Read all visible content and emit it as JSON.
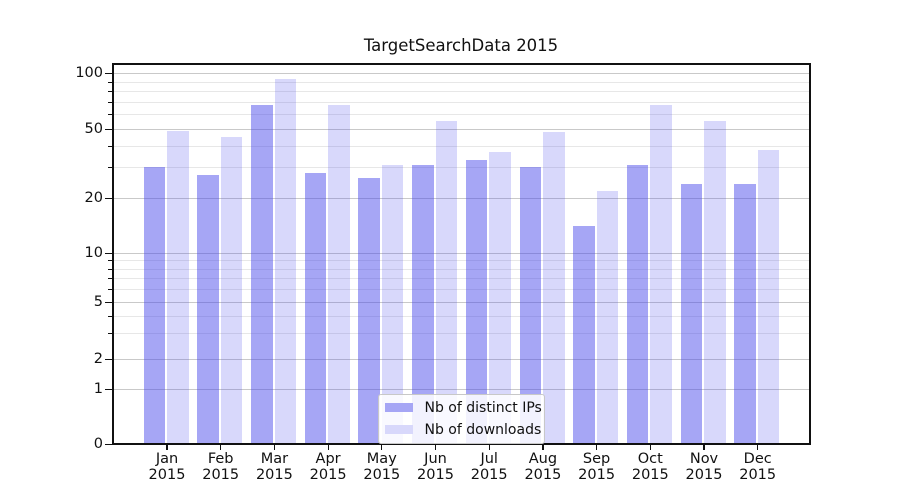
{
  "title": "TargetSearchData 2015",
  "legend": {
    "items": [
      {
        "label": "Nb of distinct IPs",
        "swatch": "#a6a6f5"
      },
      {
        "label": "Nb of downloads",
        "swatch": "#d8d8fb"
      }
    ]
  },
  "y_axis": {
    "ticks": [
      0,
      1,
      2,
      5,
      10,
      20,
      50,
      100
    ],
    "minor_ticks": [
      3,
      4,
      6,
      7,
      8,
      9,
      30,
      40,
      60,
      70,
      80,
      90
    ]
  },
  "x_axis": {
    "months": [
      "Jan",
      "Feb",
      "Mar",
      "Apr",
      "May",
      "Jun",
      "Jul",
      "Aug",
      "Sep",
      "Oct",
      "Nov",
      "Dec"
    ],
    "year": "2015"
  },
  "colors": {
    "ips_bar": "rgba(70,70,235,0.48)",
    "downloads_bar": "rgba(70,70,235,0.21)",
    "grid_major": "#c9c9c9",
    "grid_minor": "#e7e7e7",
    "axis": "#111111"
  },
  "chart_data": {
    "type": "bar",
    "title": "TargetSearchData 2015",
    "categories": [
      "Jan 2015",
      "Feb 2015",
      "Mar 2015",
      "Apr 2015",
      "May 2015",
      "Jun 2015",
      "Jul 2015",
      "Aug 2015",
      "Sep 2015",
      "Oct 2015",
      "Nov 2015",
      "Dec 2015"
    ],
    "series": [
      {
        "name": "Nb of distinct IPs",
        "values": [
          30,
          27,
          67,
          28,
          26,
          31,
          33,
          30,
          14,
          31,
          24,
          24
        ]
      },
      {
        "name": "Nb of downloads",
        "values": [
          49,
          45,
          93,
          67,
          31,
          55,
          37,
          48,
          22,
          67,
          55,
          38
        ]
      }
    ],
    "xlabel": "",
    "ylabel": "",
    "yscale": "symlog-like (linear 0-1, quasi-log above)",
    "y_ticks": [
      0,
      1,
      2,
      5,
      10,
      20,
      50,
      100
    ],
    "y_minor_ticks": [
      3,
      4,
      6,
      7,
      8,
      9,
      30,
      40,
      60,
      70,
      80,
      90
    ],
    "ylim": [
      0,
      112
    ],
    "grid": true,
    "legend_position": "lower center"
  }
}
